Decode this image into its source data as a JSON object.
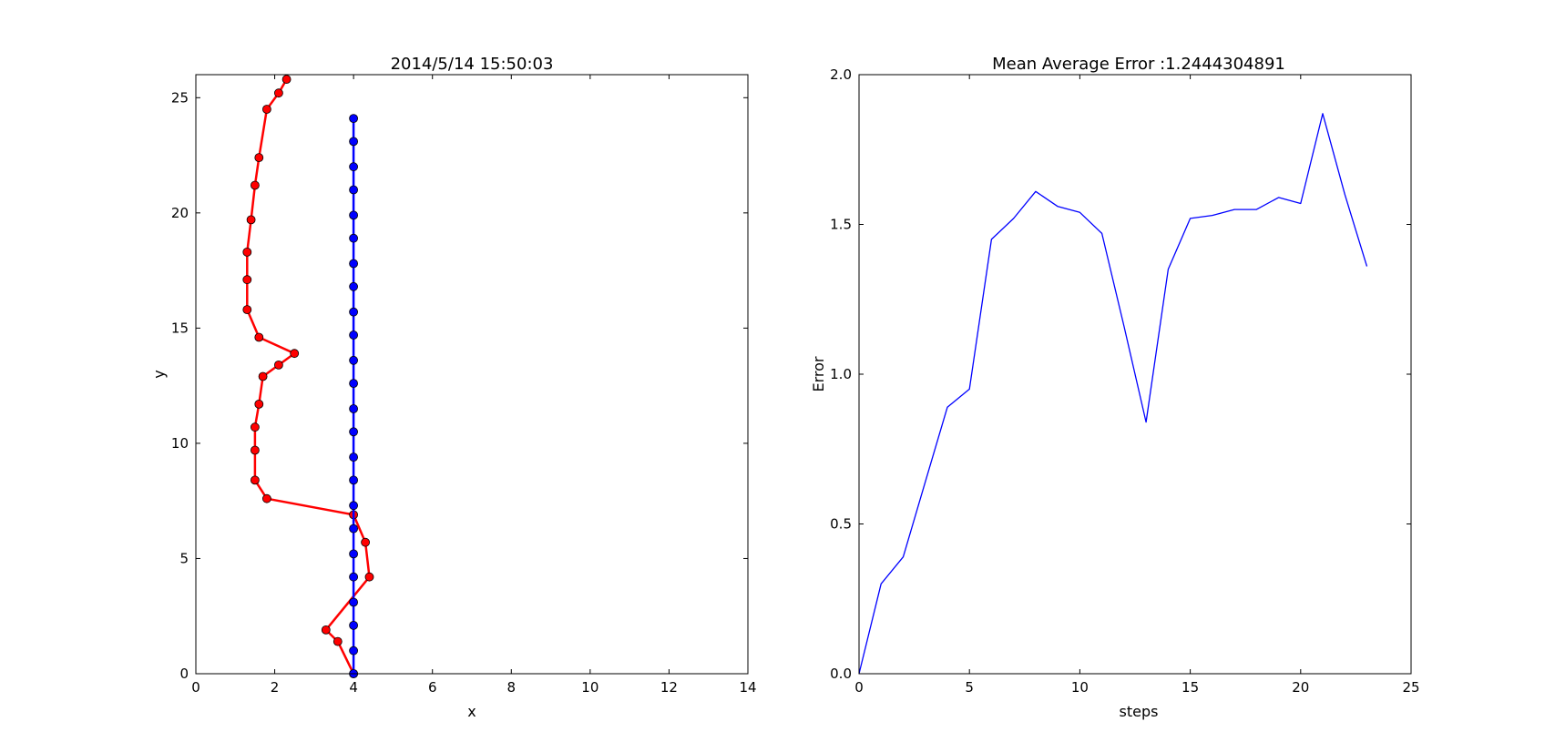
{
  "chart_data": [
    {
      "type": "line",
      "title": "2014/5/14  15:50:03",
      "xlabel": "x",
      "ylabel": "y",
      "xlim": [
        0,
        14
      ],
      "ylim": [
        0,
        26
      ],
      "xticks": [
        "0",
        "2",
        "4",
        "6",
        "8",
        "10",
        "12",
        "14"
      ],
      "yticks": [
        "0",
        "5",
        "10",
        "15",
        "20",
        "25"
      ],
      "grid": false,
      "series": [
        {
          "color": "#ff0000",
          "marker": "circle",
          "points": [
            [
              4.0,
              0.0
            ],
            [
              3.6,
              1.4
            ],
            [
              3.3,
              1.9
            ],
            [
              4.4,
              4.2
            ],
            [
              4.3,
              5.7
            ],
            [
              4.0,
              6.9
            ],
            [
              1.8,
              7.6
            ],
            [
              1.5,
              8.4
            ],
            [
              1.5,
              9.7
            ],
            [
              1.5,
              10.7
            ],
            [
              1.6,
              11.7
            ],
            [
              1.7,
              12.9
            ],
            [
              2.1,
              13.4
            ],
            [
              2.5,
              13.9
            ],
            [
              1.6,
              14.6
            ],
            [
              1.3,
              15.8
            ],
            [
              1.3,
              17.1
            ],
            [
              1.3,
              18.3
            ],
            [
              1.4,
              19.7
            ],
            [
              1.5,
              21.2
            ],
            [
              1.6,
              22.4
            ],
            [
              1.8,
              24.5
            ],
            [
              2.1,
              25.2
            ],
            [
              2.3,
              25.8
            ]
          ]
        },
        {
          "color": "#0000ff",
          "marker": "circle",
          "points": [
            [
              4.0,
              0.0
            ],
            [
              4.0,
              1.0
            ],
            [
              4.0,
              2.1
            ],
            [
              4.0,
              3.1
            ],
            [
              4.0,
              4.2
            ],
            [
              4.0,
              5.2
            ],
            [
              4.0,
              6.3
            ],
            [
              4.0,
              7.3
            ],
            [
              4.0,
              8.4
            ],
            [
              4.0,
              9.4
            ],
            [
              4.0,
              10.5
            ],
            [
              4.0,
              11.5
            ],
            [
              4.0,
              12.6
            ],
            [
              4.0,
              13.6
            ],
            [
              4.0,
              14.7
            ],
            [
              4.0,
              15.7
            ],
            [
              4.0,
              16.8
            ],
            [
              4.0,
              17.8
            ],
            [
              4.0,
              18.9
            ],
            [
              4.0,
              19.9
            ],
            [
              4.0,
              21.0
            ],
            [
              4.0,
              22.0
            ],
            [
              4.0,
              23.1
            ],
            [
              4.0,
              24.1
            ]
          ]
        }
      ]
    },
    {
      "type": "line",
      "title": "Mean Average Error :1.2444304891",
      "xlabel": "steps",
      "ylabel": "Error",
      "xlim": [
        0,
        25
      ],
      "ylim": [
        0,
        2.0
      ],
      "xticks": [
        "0",
        "5",
        "10",
        "15",
        "20",
        "25"
      ],
      "yticks": [
        "0.0",
        "0.5",
        "1.0",
        "1.5",
        "2.0"
      ],
      "grid": false,
      "series": [
        {
          "color": "#0000ff",
          "marker": "none",
          "points": [
            [
              0,
              0.0
            ],
            [
              1,
              0.3
            ],
            [
              2,
              0.39
            ],
            [
              3,
              0.64
            ],
            [
              4,
              0.89
            ],
            [
              5,
              0.95
            ],
            [
              6,
              1.45
            ],
            [
              7,
              1.52
            ],
            [
              8,
              1.61
            ],
            [
              9,
              1.56
            ],
            [
              10,
              1.54
            ],
            [
              11,
              1.47
            ],
            [
              12,
              1.16
            ],
            [
              13,
              0.84
            ],
            [
              14,
              1.35
            ],
            [
              15,
              1.52
            ],
            [
              16,
              1.53
            ],
            [
              17,
              1.55
            ],
            [
              18,
              1.55
            ],
            [
              19,
              1.59
            ],
            [
              20,
              1.57
            ],
            [
              21,
              1.87
            ],
            [
              22,
              1.6
            ],
            [
              23,
              1.36
            ]
          ]
        }
      ]
    }
  ]
}
